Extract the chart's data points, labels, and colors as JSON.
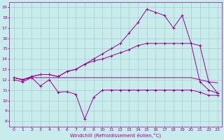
{
  "xlabel": "Windchill (Refroidissement éolien,°C)",
  "background_color": "#c8ecec",
  "line_color": "#990099",
  "grid_color": "#aacccc",
  "x_ticks": [
    0,
    1,
    2,
    3,
    4,
    5,
    6,
    7,
    8,
    9,
    10,
    11,
    12,
    13,
    14,
    15,
    16,
    17,
    18,
    19,
    20,
    21,
    22,
    23
  ],
  "y_ticks": [
    8,
    9,
    10,
    11,
    12,
    13,
    14,
    15,
    16,
    17,
    18,
    19
  ],
  "xlim": [
    -0.5,
    23.5
  ],
  "ylim": [
    7.5,
    19.5
  ],
  "series1_x": [
    0,
    1,
    2,
    3,
    4,
    5,
    6,
    7,
    8,
    9,
    10,
    11,
    12,
    13,
    14,
    15,
    16,
    17,
    18,
    19,
    20,
    21,
    22,
    23
  ],
  "series1_y": [
    12.0,
    11.8,
    12.2,
    11.4,
    12.0,
    10.8,
    10.85,
    10.6,
    8.2,
    10.3,
    11.0,
    11.0,
    11.0,
    11.0,
    11.0,
    11.0,
    11.0,
    11.0,
    11.0,
    11.0,
    11.0,
    10.8,
    10.5,
    10.5
  ],
  "series2_x": [
    0,
    1,
    2,
    3,
    4,
    5,
    6,
    7,
    8,
    9,
    10,
    11,
    12,
    13,
    14,
    15,
    16,
    17,
    18,
    19,
    20,
    21,
    22,
    23
  ],
  "series2_y": [
    12.2,
    12.0,
    12.2,
    12.2,
    12.2,
    12.2,
    12.2,
    12.2,
    12.2,
    12.2,
    12.2,
    12.2,
    12.2,
    12.2,
    12.2,
    12.2,
    12.2,
    12.2,
    12.2,
    12.2,
    12.2,
    12.0,
    11.8,
    11.7
  ],
  "series3_x": [
    0,
    1,
    2,
    3,
    4,
    5,
    6,
    7,
    8,
    9,
    10,
    11,
    12,
    13,
    14,
    15,
    16,
    17,
    18,
    19,
    20,
    21,
    22,
    23
  ],
  "series3_y": [
    12.2,
    12.0,
    12.3,
    12.5,
    12.5,
    12.3,
    12.8,
    13.0,
    13.5,
    13.8,
    14.0,
    14.3,
    14.6,
    14.9,
    15.3,
    15.5,
    15.5,
    15.5,
    15.5,
    15.5,
    15.5,
    11.8,
    11.0,
    10.7
  ],
  "series4_x": [
    0,
    1,
    2,
    3,
    4,
    5,
    6,
    7,
    8,
    9,
    10,
    11,
    12,
    13,
    14,
    15,
    16,
    17,
    18,
    19,
    20,
    21,
    22,
    23
  ],
  "series4_y": [
    12.2,
    12.0,
    12.3,
    12.5,
    12.5,
    12.3,
    12.8,
    13.0,
    13.5,
    14.0,
    14.5,
    15.0,
    15.5,
    16.5,
    17.5,
    18.8,
    18.5,
    18.2,
    17.0,
    18.2,
    15.5,
    15.3,
    11.8,
    10.7
  ]
}
